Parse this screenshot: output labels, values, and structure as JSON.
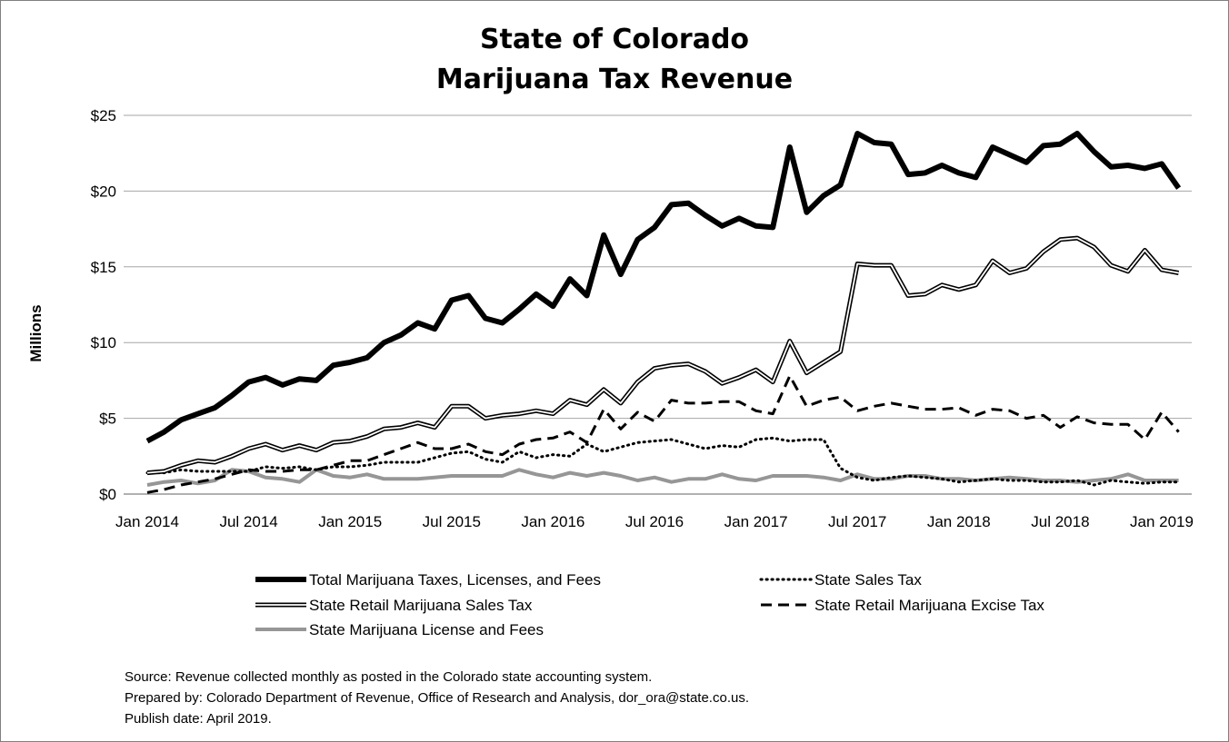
{
  "chart_data": {
    "type": "line",
    "title_lines": [
      "State of Colorado",
      "Marijuana Tax Revenue"
    ],
    "ylabel": "Millions",
    "ylim": [
      0,
      25
    ],
    "y_ticks": [
      0,
      5,
      10,
      15,
      20,
      25
    ],
    "y_tick_labels": [
      "$0",
      "$5",
      "$10",
      "$15",
      "$20",
      "$25"
    ],
    "x_months_count": 64,
    "x_tick_labels": [
      "Jan 2014",
      "Jul 2014",
      "Jan 2015",
      "Jul 2015",
      "Jan 2016",
      "Jul 2016",
      "Jan 2017",
      "Jul 2017",
      "Jan 2018",
      "Jul 2018",
      "Jan 2019"
    ],
    "x_tick_month_index": [
      0,
      6,
      12,
      18,
      24,
      30,
      36,
      42,
      48,
      54,
      60
    ],
    "grid": "horizontal",
    "legend_position": "bottom",
    "series": [
      {
        "name": "Total Marijuana Taxes, Licenses, and Fees",
        "style": "thick-solid",
        "color": "#000000",
        "values": [
          3.5,
          4.1,
          4.9,
          5.3,
          5.7,
          6.5,
          7.4,
          7.7,
          7.2,
          7.6,
          7.5,
          8.5,
          8.7,
          9.0,
          10.0,
          10.5,
          11.3,
          10.9,
          12.8,
          13.1,
          11.6,
          11.3,
          12.2,
          13.2,
          12.4,
          14.2,
          13.1,
          17.1,
          14.5,
          16.8,
          17.6,
          19.1,
          19.2,
          18.4,
          17.7,
          18.2,
          17.7,
          17.6,
          22.9,
          18.6,
          19.7,
          20.4,
          23.8,
          23.2,
          23.1,
          21.1,
          21.2,
          21.7,
          21.2,
          20.9,
          22.9,
          22.4,
          21.9,
          23.0,
          23.1,
          23.8,
          22.6,
          21.6,
          21.7,
          21.5,
          21.8,
          20.2
        ]
      },
      {
        "name": "State Sales Tax",
        "style": "dotted",
        "color": "#000000",
        "values": [
          1.4,
          1.4,
          1.6,
          1.5,
          1.5,
          1.5,
          1.5,
          1.8,
          1.7,
          1.8,
          1.6,
          1.8,
          1.8,
          1.9,
          2.1,
          2.1,
          2.1,
          2.4,
          2.7,
          2.8,
          2.3,
          2.1,
          2.8,
          2.4,
          2.6,
          2.5,
          3.3,
          2.8,
          3.1,
          3.4,
          3.5,
          3.6,
          3.3,
          3.0,
          3.2,
          3.1,
          3.6,
          3.7,
          3.5,
          3.6,
          3.6,
          1.7,
          1.1,
          0.9,
          1.1,
          1.2,
          1.1,
          1.0,
          0.8,
          0.9,
          1.0,
          0.9,
          0.9,
          0.8,
          0.8,
          0.9,
          0.6,
          0.9,
          0.8,
          0.7,
          0.8,
          0.8
        ]
      },
      {
        "name": "State Retail Marijuana Sales Tax",
        "style": "double",
        "color": "#000000",
        "values": [
          1.4,
          1.5,
          1.9,
          2.2,
          2.1,
          2.5,
          3.0,
          3.3,
          2.9,
          3.2,
          2.9,
          3.4,
          3.5,
          3.8,
          4.3,
          4.4,
          4.7,
          4.4,
          5.8,
          5.8,
          5.0,
          5.2,
          5.3,
          5.5,
          5.3,
          6.2,
          5.9,
          6.9,
          6.0,
          7.4,
          8.3,
          8.5,
          8.6,
          8.1,
          7.3,
          7.7,
          8.2,
          7.4,
          10.1,
          8.0,
          8.7,
          9.4,
          15.2,
          15.1,
          15.1,
          13.1,
          13.2,
          13.8,
          13.5,
          13.8,
          15.4,
          14.6,
          14.9,
          16.0,
          16.8,
          16.9,
          16.3,
          15.1,
          14.7,
          16.1,
          14.8,
          14.6
        ]
      },
      {
        "name": "State Retail Marijuana Excise Tax",
        "style": "dashed",
        "color": "#000000",
        "values": [
          0.1,
          0.3,
          0.6,
          0.8,
          1.0,
          1.3,
          1.6,
          1.5,
          1.5,
          1.6,
          1.6,
          1.9,
          2.2,
          2.2,
          2.6,
          3.0,
          3.4,
          3.0,
          3.0,
          3.3,
          2.8,
          2.6,
          3.3,
          3.6,
          3.7,
          4.1,
          3.4,
          5.6,
          4.3,
          5.4,
          4.8,
          6.2,
          6.0,
          6.0,
          6.1,
          6.1,
          5.5,
          5.3,
          7.8,
          5.8,
          6.2,
          6.4,
          5.5,
          5.8,
          6.0,
          5.8,
          5.6,
          5.6,
          5.7,
          5.2,
          5.6,
          5.5,
          5.0,
          5.2,
          4.4,
          5.1,
          4.7,
          4.6,
          4.6,
          3.6,
          5.4,
          4.1
        ]
      },
      {
        "name": "State Marijuana License and Fees",
        "style": "gray-solid",
        "color": "#969696",
        "values": [
          0.6,
          0.8,
          0.9,
          0.7,
          0.9,
          1.6,
          1.5,
          1.1,
          1.0,
          0.8,
          1.6,
          1.2,
          1.1,
          1.3,
          1.0,
          1.0,
          1.0,
          1.1,
          1.2,
          1.2,
          1.2,
          1.2,
          1.6,
          1.3,
          1.1,
          1.4,
          1.2,
          1.4,
          1.2,
          0.9,
          1.1,
          0.8,
          1.0,
          1.0,
          1.3,
          1.0,
          0.9,
          1.2,
          1.2,
          1.2,
          1.1,
          0.9,
          1.3,
          1.0,
          1.0,
          1.2,
          1.2,
          1.0,
          1.0,
          0.9,
          1.0,
          1.1,
          1.0,
          0.9,
          0.9,
          0.8,
          0.9,
          1.0,
          1.3,
          0.9,
          0.9,
          0.9
        ]
      }
    ]
  },
  "source_lines": [
    "Source: Revenue collected monthly as posted in the Colorado state accounting system.",
    "Prepared by: Colorado Department of Revenue, Office of Research and Analysis, dor_ora@state.co.us.",
    "Publish date: April 2019."
  ]
}
